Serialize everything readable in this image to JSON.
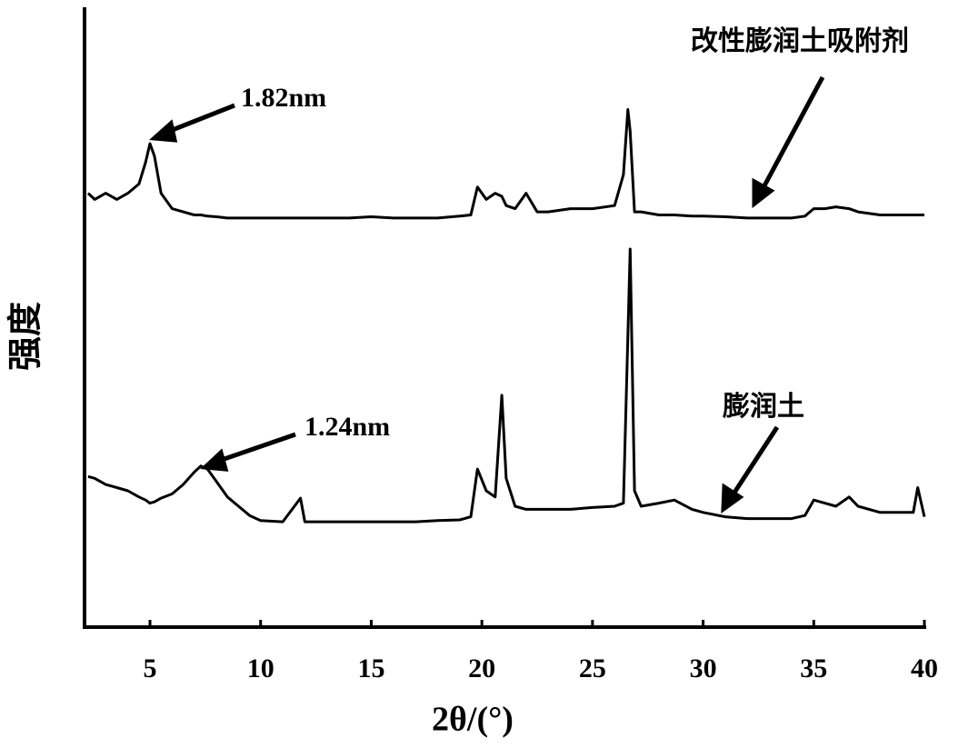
{
  "chart_data": {
    "type": "line",
    "xlabel": "2θ/(°)",
    "ylabel": "强度",
    "annotations": [
      "1.82nm",
      "1.24nm"
    ],
    "x": [
      2.2,
      2.5,
      3,
      3.5,
      4,
      4.5,
      4.8,
      5,
      5.2,
      5.5,
      6,
      6.5,
      7,
      7.3,
      7.6,
      8,
      8.5,
      9,
      9.5,
      10,
      11,
      11.8,
      12,
      13,
      14,
      15,
      16,
      17,
      18,
      19,
      19.5,
      19.8,
      20.2,
      20.6,
      20.9,
      21.1,
      21.5,
      22,
      22.5,
      23,
      24,
      25,
      26,
      26.4,
      26.6,
      26.7,
      26.9,
      27.2,
      28,
      28.7,
      29.5,
      30,
      31,
      32,
      33,
      34,
      34.6,
      35,
      35.5,
      36,
      36.6,
      37,
      38,
      39,
      39.5,
      39.7,
      40
    ],
    "series": [
      {
        "name": "改性膨润土吸附剂",
        "color": "#000000",
        "values": [
          70,
          69,
          70,
          69,
          70,
          71.5,
          75,
          78,
          76,
          70,
          67.5,
          67,
          66.5,
          66.5,
          66.3,
          66.2,
          66,
          66,
          66,
          66,
          66,
          66,
          66,
          66,
          66,
          66.2,
          66,
          66,
          66,
          66.3,
          66.5,
          71,
          69,
          70,
          69.5,
          68,
          67.5,
          70,
          67,
          67,
          67.5,
          67.5,
          68,
          73,
          83.5,
          80,
          67,
          67,
          66.5,
          66.5,
          66.3,
          66.3,
          66.2,
          66,
          66,
          66,
          66.3,
          67.5,
          67.5,
          67.8,
          67.5,
          67,
          66.5,
          66.5,
          66.5,
          66.5,
          66.5
        ]
      },
      {
        "name": "膨润土",
        "color": "#000000",
        "values": [
          24.3,
          24,
          23,
          22.5,
          22,
          21,
          20.5,
          20,
          20.2,
          20.8,
          21.5,
          23,
          25,
          26,
          25.5,
          23.5,
          21,
          19.5,
          18,
          17.2,
          17,
          20.8,
          17,
          17,
          17,
          17,
          17,
          17,
          17.2,
          17.3,
          17.8,
          25.5,
          22,
          21,
          37.4,
          24,
          19.5,
          19,
          19,
          19,
          19,
          19.3,
          19.5,
          20,
          47,
          61,
          22,
          19.5,
          20,
          20.5,
          19,
          18.5,
          17.8,
          17.5,
          17.5,
          17.5,
          18,
          20.5,
          20,
          19.5,
          21,
          19.5,
          18.5,
          18.5,
          18.5,
          22.5,
          17.8
        ]
      }
    ],
    "xlim": [
      2,
      40
    ],
    "xticks": [
      5,
      10,
      15,
      20,
      25,
      30,
      35,
      40
    ],
    "ylim": [
      0,
      100
    ],
    "grid": false
  }
}
